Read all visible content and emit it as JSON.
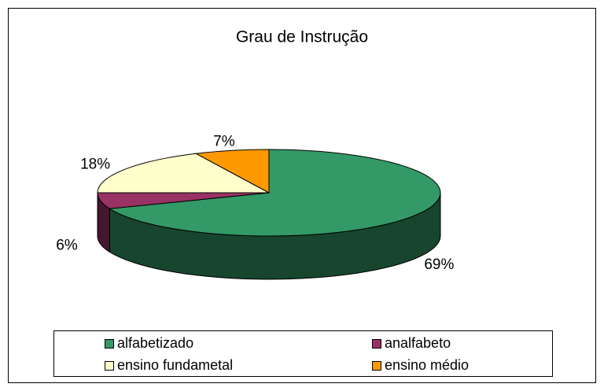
{
  "chart_data": {
    "type": "pie",
    "title": "Grau de Instrução",
    "categories": [
      "alfabetizado",
      "analfabeto",
      "ensino fundametal",
      "ensino médio"
    ],
    "values": [
      69,
      6,
      18,
      7
    ],
    "value_labels": [
      "69%",
      "6%",
      "18%",
      "7%"
    ],
    "colors": [
      "#339966",
      "#993366",
      "#ffffcc",
      "#ff9900"
    ],
    "legend": "bottom"
  }
}
